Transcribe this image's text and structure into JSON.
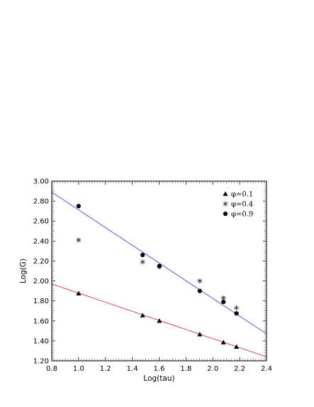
{
  "chart_data": {
    "type": "scatter",
    "title": "",
    "xlabel": "Log(tau)",
    "ylabel": "Log(G)",
    "xlim": [
      0.8,
      2.4
    ],
    "ylim": [
      1.2,
      3.0
    ],
    "xticks": [
      "0.8",
      "1.0",
      "1.2",
      "1.4",
      "1.6",
      "1.8",
      "2.0",
      "2.2",
      "2.4"
    ],
    "yticks": [
      "1.20",
      "1.40",
      "1.60",
      "1.80",
      "2.00",
      "2.20",
      "2.40",
      "2.60",
      "2.80",
      "3.00"
    ],
    "grid": false,
    "legend_position": "top-right",
    "series": [
      {
        "name": "φ=0.1",
        "marker": "triangle",
        "color": "#000000",
        "x": [
          1.0,
          1.477,
          1.602,
          1.903,
          2.079,
          2.176
        ],
        "y": [
          1.875,
          1.655,
          1.6,
          1.465,
          1.385,
          1.34
        ]
      },
      {
        "name": "φ=0.4",
        "marker": "asterisk",
        "color": "#333333",
        "x": [
          1.0,
          1.477,
          1.602,
          1.903,
          2.079,
          2.176
        ],
        "y": [
          2.41,
          2.19,
          2.14,
          2.0,
          1.83,
          1.73
        ]
      },
      {
        "name": "φ=0.9",
        "marker": "circle",
        "color": "#000000",
        "x": [
          1.0,
          1.477,
          1.602,
          1.903,
          2.079,
          2.176
        ],
        "y": [
          2.75,
          2.26,
          2.15,
          1.9,
          1.79,
          1.675
        ]
      }
    ],
    "fit_lines": [
      {
        "color": "#e03030",
        "x": [
          0.8,
          2.4
        ],
        "y": [
          1.97,
          1.24
        ]
      },
      {
        "color": "#4a4ae0",
        "x": [
          0.8,
          2.4
        ],
        "y": [
          2.89,
          1.47
        ]
      }
    ]
  }
}
